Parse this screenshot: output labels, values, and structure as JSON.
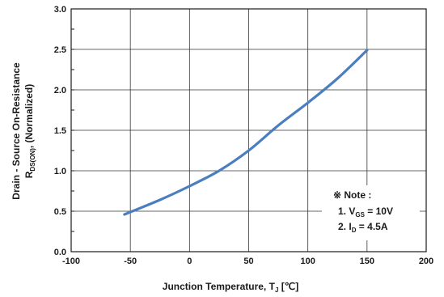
{
  "chart_data": {
    "type": "line",
    "xlabel": "Junction Temperature, T",
    "xlabel_sub": "J",
    "xlabel_unit": " [℃]",
    "ylabel_line1": "Drain - Source On-Resistance",
    "ylabel_line2_main": "R",
    "ylabel_line2_sub": "DS(ON)",
    "ylabel_line2_rest": ", (Normalized)",
    "xlim": [
      -100,
      200
    ],
    "ylim": [
      0.0,
      3.0
    ],
    "xticks": [
      -100,
      -50,
      0,
      50,
      100,
      150,
      200
    ],
    "xtick_labels": [
      "-100",
      "-50",
      "0",
      "50",
      "100",
      "150",
      "200"
    ],
    "yticks": [
      0.0,
      0.5,
      1.0,
      1.5,
      2.0,
      2.5,
      3.0
    ],
    "ytick_labels": [
      "0.0",
      "0.5",
      "1.0",
      "1.5",
      "2.0",
      "2.5",
      "3.0"
    ],
    "grid": true,
    "line_color": "#4a7ebf",
    "series": [
      {
        "x": [
          -55,
          -25,
          0,
          25,
          50,
          75,
          100,
          125,
          150
        ],
        "y": [
          0.46,
          0.64,
          0.81,
          1.0,
          1.25,
          1.56,
          1.84,
          2.14,
          2.49
        ]
      }
    ],
    "annotation": {
      "header": "※ Note :",
      "line1_prefix": "1. V",
      "line1_sub": "GS",
      "line1_rest": " = 10V",
      "line2_prefix": "2. I",
      "line2_sub": "D",
      "line2_rest": " = 4.5A"
    }
  }
}
